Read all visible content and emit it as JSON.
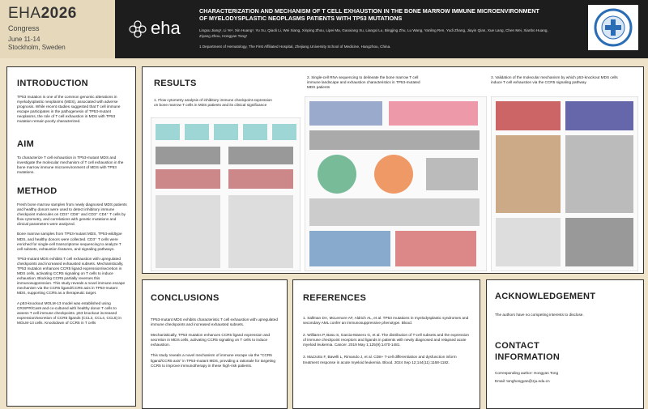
{
  "header": {
    "congress_name": "EHA",
    "congress_year": "2026",
    "congress_label": "Congress",
    "dates": "June 11-14",
    "location": "Stockholm, Sweden",
    "logo_text": "eha",
    "title": "CHARACTERIZATION AND MECHANISM OF T CELL EXHAUSTION IN THE BONE MARROW IMMUNE MICROENVIRONMENT OF MYELODYSPLASTIC NEOPLASMS PATIENTS WITH TP53 MUTATIONS",
    "authors": "Lingxu Jiang¹, Li Ye¹, Xin Huang¹, Yu Xu, Qiaoli Li, Wei Xiang, Xinping Zhou, Lipei Ma, Gaoxiang Xu, Liangxi Lu, Bingjing Zhu, Lu Wang, Yanling Ren, Yudi Zhang, Jiayin Qian, Xue Lang, Chen Mei, Xianbo Huang, Ziyang Zhou, Hongyan Tong¹",
    "affiliation": "1 Department of Hematology, The First Affiliated Hospital, Zhejiang University School of Medicine, Hangzhou, China."
  },
  "introduction": {
    "heading": "INTRODUCTION",
    "text": "TP53 mutation is one of the common genomic alterations in myelodysplastic neoplasms (MDS), associated with adverse prognosis. While recent studies suggested that T cell immune escape participates in the pathogenesis of TP53-mutant neoplasms, the role of T cell exhaustion in MDS with TP53 mutation remain poorly characterized."
  },
  "aim": {
    "heading": "AIM",
    "text": "To characterize T cell exhaustion in TP53-mutant MDS and investigate the molecular mechanism of T cell exhaustion in the bone marrow immune microenvironment of MDS with TP53 mutations."
  },
  "method": {
    "heading": "METHOD",
    "paragraphs": [
      "Fresh bone marrow samples from newly diagnosed MDS patients and healthy donors were used to detect inhibitory immune checkpoint molecules on CD3⁺ CD8⁺ and CD3⁺ CD4⁺ T cells by flow cytometry, and correlations with genetic mutations and clinical parameters were analyzed.",
      "Bone marrow samples from TP53-mutant MDS, TP53-wildtype MDS, and healthy donors were collected. CD3⁺ T cells were enriched for single-cell transcriptome sequencing to analyze T cell subsets, exhaustion features, and signaling pathways.",
      "TP53-mutant MDS exhibits T cell exhaustion with upregulated checkpoints and increased exhausted subsets. Mechanistically, TP53 mutation enhances CCR5 ligand expression/secretion in MDS cells, activating CCR5 signaling on T cells to induce exhaustion. Blocking CCR5 partially reverses this immunosuppression. This study reveals a novel immune escape mechanism via the CCR5 ligand/CCR5 axis in TP53-mutant MDS, supporting CCR5 as a therapeutic target.",
      "A p53-knockout MOLM-13 model was established using CRISPR/Cas9 and co-cultured with healthy donor T cells to assess T cell immune checkpoints. p53 knockout increased expression/secretion of CCR5 ligands (CCL3, CCL4, CCL5) in MOLM-13 cells. Knockdown of CCR5 in T cells"
    ]
  },
  "results": {
    "heading": "RESULTS",
    "captions": [
      "1. Flow cytometry analysis of inhibitory immune checkpoint expression on bone marrow T cells in MDS patients and its clinical significance",
      "2. Single-cell RNA sequencing to delineate the bone marrow T cell immune landscape and exhaustion characteristics in TP53-mutated MDS patients",
      "3. Validation of the molecular mechanism by which p53-knockout MDS cells induce T cell exhaustion via the CCR5 signaling pathway"
    ]
  },
  "conclusions": {
    "heading": "CONCLUSIONS",
    "paragraphs": [
      "TP53-mutant MDS exhibits characteristic T cell exhaustion with upregulated immune checkpoints and increased exhausted subsets.",
      "Mechanistically, TP53 mutation enhances CCR5 ligand expression and secretion in MDS cells, activating CCR5 signaling on T cells to induce exhaustion.",
      "This study reveals a novel mechanism of immune escape via the \"CCR5 ligand/CCR5 axis\" in TP53-mutant MDS, providing a rationale for targeting CCR5 to improve immunotherapy in these high-risk patients."
    ]
  },
  "references": {
    "heading": "REFERENCES",
    "items": [
      "1. Sallman DA, McLemore AF, Aldrich AL, et al. TP53 mutations in myelodysplastic syndromes and secondary AML confer an immunosuppressive phenotype. Blood.",
      "2. Williams P, Basu S, Garcia-Manero G, et al. The distribution of T-cell subsets and the expression of immune checkpoint receptors and ligands in patients with newly diagnosed and relapsed acute myeloid leukemia. Cancer. 2019 May 1;125(9):1470-1481.",
      "3. Mazzotto F, Bavelli L, Rimando J, et al. CD8+ T-cell differentiation and dysfunction inform treatment response in acute myeloid leukemia. Blood. 2024 Sep 12;144(11):1168-1182."
    ]
  },
  "acknowledgement": {
    "heading": "ACKNOWLEDGEMENT",
    "text": "The authors have no competing interests to disclose."
  },
  "contact": {
    "heading": "CONTACT INFORMATION",
    "author": "Corresponding author: Hongyan Tong",
    "email": "Email: tonghongyan@zju.edu.cn"
  }
}
